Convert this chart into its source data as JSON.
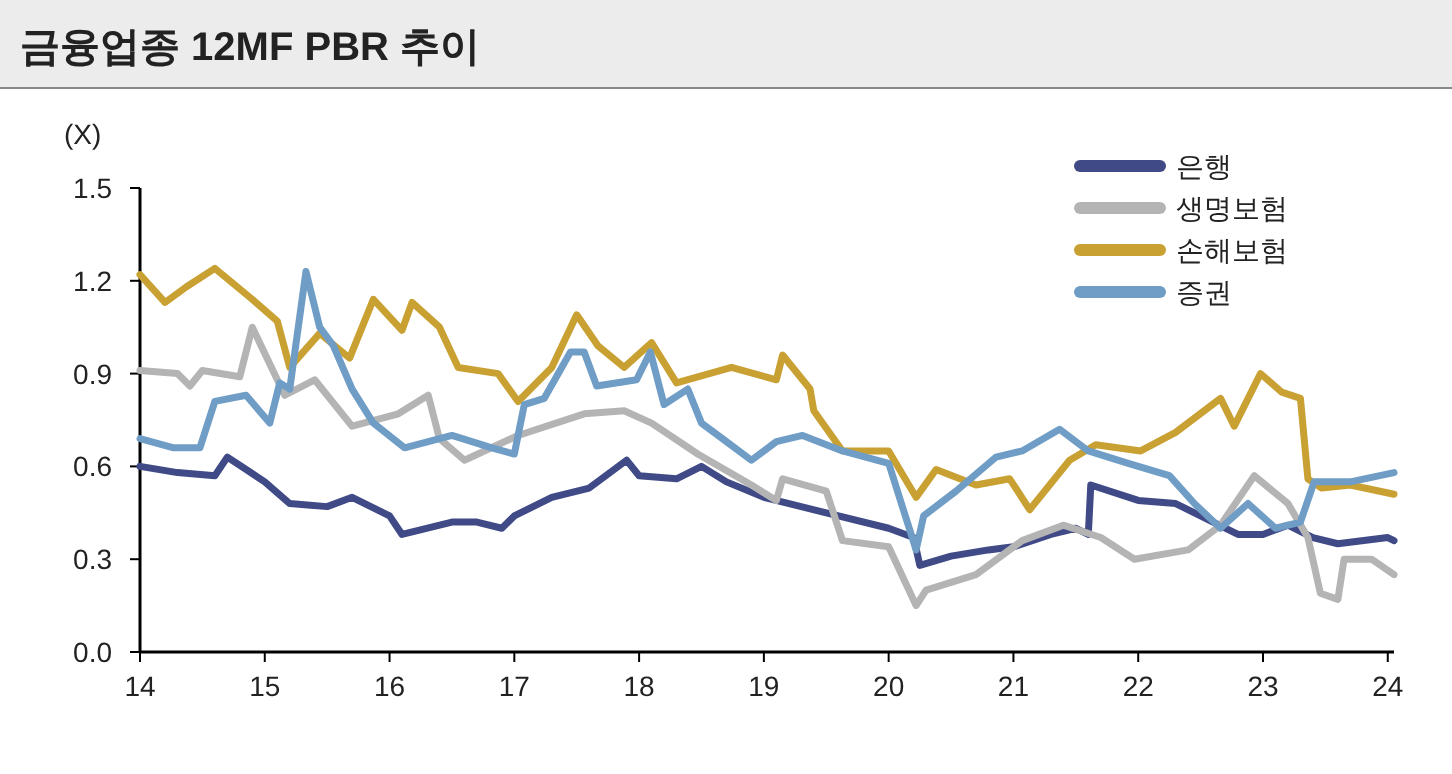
{
  "chart_data": {
    "type": "line",
    "title": "금융업종 12MF PBR 추이",
    "ylabel": "(X)",
    "legend": "top right",
    "grid": false,
    "xlim": [
      14,
      24.05
    ],
    "xticks": [
      14,
      15,
      16,
      17,
      18,
      19,
      20,
      21,
      22,
      23,
      24
    ],
    "ylim": [
      0,
      1.5
    ],
    "yticks": [
      {
        "value": 0,
        "label": "0.0"
      },
      0.3,
      0.6,
      0.9,
      1.2,
      1.5
    ],
    "series": [
      {
        "name": "은행",
        "color": "#3f4a86",
        "x": [
          14,
          14.3,
          14.6,
          14.7,
          15.0,
          15.2,
          15.5,
          15.7,
          16.0,
          16.1,
          16.5,
          16.7,
          16.9,
          17.0,
          17.3,
          17.6,
          17.9,
          18.0,
          18.3,
          18.5,
          18.7,
          19.0,
          19.5,
          20.0,
          20.2,
          20.25,
          20.5,
          20.8,
          21.0,
          21.3,
          21.5,
          21.6,
          21.62,
          22.0,
          22.3,
          22.6,
          22.8,
          23.0,
          23.2,
          23.4,
          23.6,
          24.0,
          24.05
        ],
        "values": [
          0.6,
          0.58,
          0.57,
          0.63,
          0.55,
          0.48,
          0.47,
          0.5,
          0.44,
          0.38,
          0.42,
          0.42,
          0.4,
          0.44,
          0.5,
          0.53,
          0.62,
          0.57,
          0.56,
          0.6,
          0.55,
          0.5,
          0.45,
          0.4,
          0.37,
          0.28,
          0.31,
          0.33,
          0.34,
          0.38,
          0.4,
          0.38,
          0.54,
          0.49,
          0.48,
          0.42,
          0.38,
          0.38,
          0.41,
          0.37,
          0.35,
          0.37,
          0.36
        ]
      },
      {
        "name": "생명보험",
        "color": "#b4b4b4",
        "x": [
          14,
          14.3,
          14.4,
          14.5,
          14.8,
          14.9,
          15.16,
          15.4,
          15.7,
          16.07,
          16.31,
          16.4,
          16.6,
          17.03,
          17.56,
          17.88,
          18.1,
          18.47,
          18.9,
          19.1,
          19.15,
          19.5,
          19.63,
          20.0,
          20.22,
          20.3,
          20.7,
          21.07,
          21.4,
          21.7,
          21.97,
          22.4,
          22.66,
          22.93,
          23.2,
          23.36,
          23.46,
          23.6,
          23.65,
          23.87,
          24.05
        ],
        "values": [
          0.91,
          0.9,
          0.86,
          0.91,
          0.89,
          1.05,
          0.83,
          0.88,
          0.73,
          0.77,
          0.83,
          0.69,
          0.62,
          0.7,
          0.77,
          0.78,
          0.74,
          0.64,
          0.54,
          0.49,
          0.56,
          0.52,
          0.36,
          0.34,
          0.15,
          0.2,
          0.25,
          0.36,
          0.41,
          0.37,
          0.3,
          0.33,
          0.41,
          0.57,
          0.48,
          0.37,
          0.19,
          0.17,
          0.3,
          0.3,
          0.25
        ]
      },
      {
        "name": "손해보험",
        "color": "#c9a032",
        "x": [
          14,
          14.2,
          14.37,
          14.6,
          14.9,
          15.1,
          15.2,
          15.44,
          15.68,
          15.87,
          16.1,
          16.18,
          16.4,
          16.55,
          16.87,
          17.03,
          17.3,
          17.5,
          17.67,
          17.88,
          18.1,
          18.3,
          18.74,
          19.1,
          19.15,
          19.37,
          19.4,
          19.63,
          20.0,
          20.22,
          20.38,
          20.7,
          20.97,
          21.13,
          21.45,
          21.66,
          22.02,
          22.3,
          22.66,
          22.77,
          22.98,
          23.15,
          23.3,
          23.36,
          23.47,
          23.7,
          24.05
        ],
        "values": [
          1.22,
          1.13,
          1.18,
          1.24,
          1.14,
          1.07,
          0.92,
          1.03,
          0.95,
          1.14,
          1.04,
          1.13,
          1.05,
          0.92,
          0.9,
          0.81,
          0.92,
          1.09,
          0.99,
          0.92,
          1.0,
          0.87,
          0.92,
          0.88,
          0.96,
          0.85,
          0.78,
          0.65,
          0.65,
          0.5,
          0.59,
          0.54,
          0.56,
          0.46,
          0.62,
          0.67,
          0.65,
          0.71,
          0.82,
          0.73,
          0.9,
          0.84,
          0.82,
          0.56,
          0.53,
          0.54,
          0.51
        ]
      },
      {
        "name": "증권",
        "color": "#6f9dc6",
        "x": [
          14,
          14.27,
          14.48,
          14.6,
          14.85,
          15.04,
          15.12,
          15.2,
          15.33,
          15.44,
          15.55,
          15.7,
          15.87,
          16.12,
          16.5,
          16.82,
          17.0,
          17.08,
          17.24,
          17.45,
          17.56,
          17.66,
          17.98,
          18.09,
          18.2,
          18.39,
          18.5,
          18.7,
          18.9,
          19.1,
          19.31,
          19.63,
          20.0,
          20.22,
          20.28,
          20.54,
          20.86,
          21.07,
          21.37,
          21.6,
          21.92,
          22.25,
          22.45,
          22.66,
          22.88,
          23.1,
          23.3,
          23.41,
          23.7,
          24.05
        ],
        "values": [
          0.69,
          0.66,
          0.66,
          0.81,
          0.83,
          0.74,
          0.87,
          0.85,
          1.23,
          1.05,
          0.99,
          0.85,
          0.74,
          0.66,
          0.7,
          0.66,
          0.64,
          0.8,
          0.82,
          0.97,
          0.97,
          0.86,
          0.88,
          0.97,
          0.8,
          0.85,
          0.74,
          0.68,
          0.62,
          0.68,
          0.7,
          0.65,
          0.61,
          0.33,
          0.44,
          0.52,
          0.63,
          0.65,
          0.72,
          0.65,
          0.61,
          0.57,
          0.48,
          0.4,
          0.48,
          0.4,
          0.42,
          0.55,
          0.55,
          0.58
        ]
      }
    ]
  }
}
